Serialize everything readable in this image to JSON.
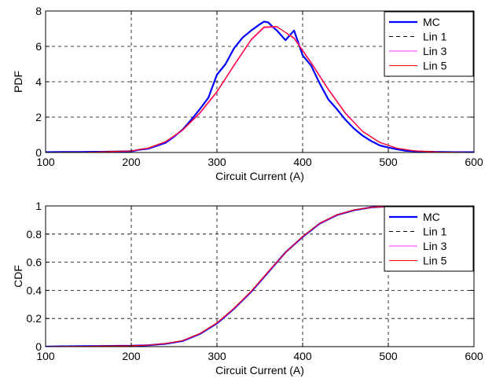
{
  "chart_data": [
    {
      "type": "line",
      "xlabel": "Circuit Current (A)",
      "ylabel": "PDF",
      "xlim": [
        100,
        600
      ],
      "ylim": [
        0,
        8
      ],
      "xticks": [
        "100",
        "200",
        "300",
        "400",
        "500",
        "600"
      ],
      "yticks": [
        "0",
        "2",
        "4",
        "6",
        "8"
      ],
      "grid": true,
      "legend_position": "top-right",
      "y_scale_note": "",
      "series": [
        {
          "name": "MC",
          "color": "#0000ff",
          "style": "solid-thick",
          "x": [
            100,
            120,
            140,
            160,
            180,
            200,
            210,
            220,
            230,
            240,
            250,
            260,
            270,
            280,
            290,
            300,
            310,
            320,
            330,
            340,
            350,
            355,
            360,
            365,
            370,
            380,
            390,
            400,
            410,
            420,
            430,
            440,
            450,
            460,
            470,
            480,
            490,
            500,
            510,
            520,
            540,
            560,
            580,
            600
          ],
          "y": [
            0.02,
            0.03,
            0.03,
            0.04,
            0.05,
            0.07,
            0.16,
            0.22,
            0.38,
            0.55,
            0.9,
            1.3,
            1.85,
            2.45,
            3.1,
            4.4,
            5.0,
            5.9,
            6.5,
            6.9,
            7.25,
            7.4,
            7.35,
            7.1,
            6.9,
            6.35,
            6.9,
            5.5,
            4.9,
            3.9,
            3.0,
            2.45,
            1.85,
            1.35,
            0.95,
            0.65,
            0.4,
            0.28,
            0.18,
            0.1,
            0.05,
            0.03,
            0.02,
            0.02
          ]
        },
        {
          "name": "Lin 1",
          "color": "#000000",
          "style": "dashed",
          "x": [],
          "y": []
        },
        {
          "name": "Lin 3",
          "color": "#ff33ff",
          "style": "solid-thin",
          "x": [
            100,
            150,
            200,
            220,
            240,
            260,
            280,
            300,
            320,
            340,
            355,
            370,
            390,
            410,
            430,
            450,
            470,
            490,
            510,
            530,
            560,
            600
          ],
          "y": [
            0.0,
            0.01,
            0.08,
            0.24,
            0.6,
            1.25,
            2.2,
            3.4,
            4.9,
            6.35,
            7.05,
            7.1,
            6.5,
            5.1,
            3.6,
            2.25,
            1.2,
            0.58,
            0.25,
            0.1,
            0.02,
            0.0
          ]
        },
        {
          "name": "Lin 5",
          "color": "#ff0000",
          "style": "solid-thin",
          "x": [
            100,
            150,
            200,
            220,
            240,
            260,
            280,
            300,
            320,
            340,
            355,
            370,
            390,
            410,
            430,
            450,
            470,
            490,
            510,
            530,
            560,
            600
          ],
          "y": [
            0.0,
            0.01,
            0.09,
            0.26,
            0.62,
            1.28,
            2.25,
            3.45,
            4.95,
            6.4,
            7.1,
            7.12,
            6.45,
            5.05,
            3.55,
            2.2,
            1.18,
            0.56,
            0.24,
            0.1,
            0.02,
            0.0
          ]
        }
      ]
    },
    {
      "type": "line",
      "xlabel": "Circuit Current (A)",
      "ylabel": "CDF",
      "xlim": [
        100,
        600
      ],
      "ylim": [
        0,
        1
      ],
      "xticks": [
        "100",
        "200",
        "300",
        "400",
        "500",
        "600"
      ],
      "yticks": [
        "0",
        "0.2",
        "0.4",
        "0.6",
        "0.8",
        "1"
      ],
      "grid": true,
      "legend_position": "top-right",
      "series": [
        {
          "name": "MC",
          "color": "#0000ff",
          "style": "solid-thick",
          "x": [
            100,
            120,
            150,
            200,
            220,
            240,
            260,
            280,
            300,
            320,
            340,
            360,
            380,
            400,
            420,
            440,
            460,
            480,
            500,
            520,
            550,
            600
          ],
          "y": [
            0.0,
            0.002,
            0.004,
            0.006,
            0.01,
            0.02,
            0.04,
            0.09,
            0.165,
            0.27,
            0.39,
            0.53,
            0.67,
            0.78,
            0.875,
            0.935,
            0.97,
            0.99,
            0.997,
            0.999,
            1.0,
            1.0
          ]
        },
        {
          "name": "Lin 1",
          "color": "#000000",
          "style": "dashed",
          "x": [],
          "y": []
        },
        {
          "name": "Lin 3",
          "color": "#ff33ff",
          "style": "solid-thin",
          "x": [
            100,
            120,
            150,
            200,
            220,
            240,
            260,
            280,
            300,
            320,
            340,
            360,
            380,
            400,
            420,
            440,
            460,
            480,
            500,
            520,
            550,
            600
          ],
          "y": [
            0.0,
            0.001,
            0.003,
            0.006,
            0.011,
            0.022,
            0.042,
            0.092,
            0.168,
            0.272,
            0.392,
            0.532,
            0.668,
            0.782,
            0.876,
            0.936,
            0.971,
            0.99,
            0.997,
            0.999,
            1.0,
            1.0
          ]
        },
        {
          "name": "Lin 5",
          "color": "#ff0000",
          "style": "solid-thin",
          "x": [
            100,
            120,
            150,
            200,
            220,
            240,
            260,
            280,
            300,
            320,
            340,
            360,
            380,
            400,
            420,
            440,
            460,
            480,
            500,
            520,
            550,
            600
          ],
          "y": [
            0.0,
            0.001,
            0.003,
            0.006,
            0.011,
            0.022,
            0.043,
            0.093,
            0.17,
            0.274,
            0.394,
            0.534,
            0.669,
            0.783,
            0.877,
            0.937,
            0.971,
            0.99,
            0.997,
            0.999,
            1.0,
            1.0
          ]
        }
      ]
    }
  ]
}
